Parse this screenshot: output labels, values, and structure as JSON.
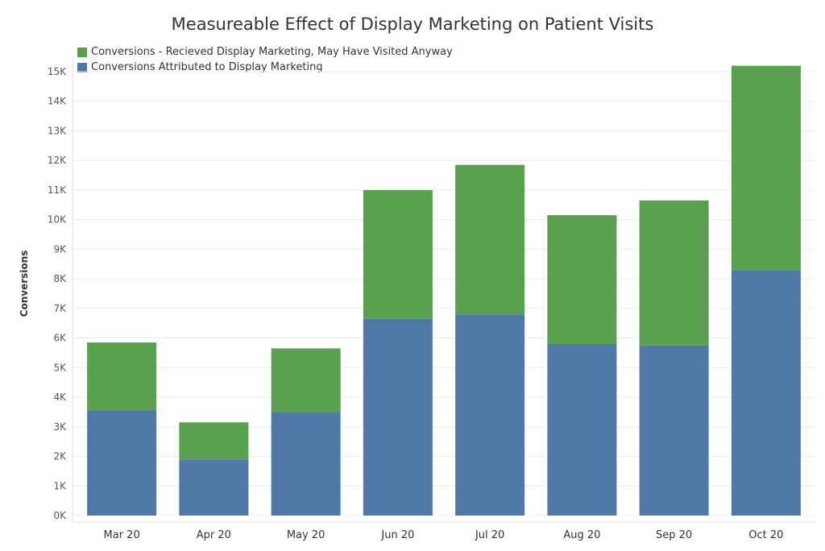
{
  "chart_data": {
    "type": "bar",
    "stacked": true,
    "title": "Measureable Effect of Display Marketing on Patient Visits",
    "ylabel": "Conversions",
    "xlabel": "",
    "categories": [
      "Mar 20",
      "Apr 20",
      "May 20",
      "Jun 20",
      "Jul 20",
      "Aug 20",
      "Sep 20",
      "Oct 20"
    ],
    "series": [
      {
        "name": "Conversions Attributed to Display Marketing",
        "color": "#4e79a7",
        "values": [
          3550,
          1900,
          3500,
          6650,
          6800,
          5800,
          5750,
          8300
        ]
      },
      {
        "name": "Conversions - Recieved Display Marketing, May Have Visited Anyway",
        "color": "#59a14f",
        "values": [
          2300,
          1250,
          2150,
          4350,
          5050,
          4350,
          4900,
          6900
        ]
      }
    ],
    "ylim": [
      0,
      15000
    ],
    "yticks": [
      "0K",
      "1K",
      "2K",
      "3K",
      "4K",
      "5K",
      "6K",
      "7K",
      "8K",
      "9K",
      "10K",
      "11K",
      "12K",
      "13K",
      "14K",
      "15K"
    ],
    "legend_position": "top-left",
    "grid": true
  }
}
